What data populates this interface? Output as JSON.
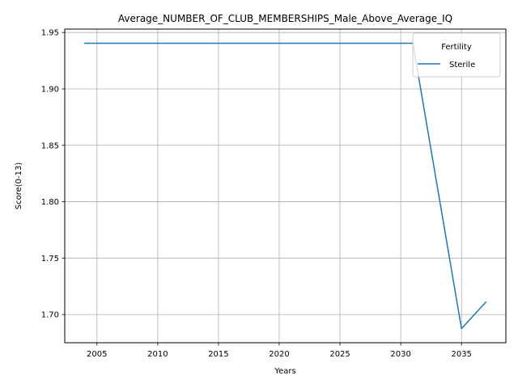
{
  "chart_data": {
    "type": "line",
    "title": "Average_NUMBER_OF_CLUB_MEMBERSHIPS_Male_Above_Average_IQ",
    "xlabel": "Years",
    "ylabel": "Score(0-13)",
    "xlim": [
      2002.35,
      2038.65
    ],
    "ylim": [
      1.675,
      1.953
    ],
    "xticks": [
      2005,
      2010,
      2015,
      2020,
      2025,
      2030,
      2035
    ],
    "yticks": [
      1.7,
      1.75,
      1.8,
      1.85,
      1.9,
      1.95
    ],
    "xtick_labels": [
      "2005",
      "2010",
      "2015",
      "2020",
      "2025",
      "2030",
      "2035"
    ],
    "ytick_labels": [
      "1.70",
      "1.75",
      "1.80",
      "1.85",
      "1.90",
      "1.95"
    ],
    "grid": true,
    "legend": {
      "title": "Fertility",
      "placement": "top-right"
    },
    "series": [
      {
        "name": "Sterile",
        "color": "#1f77b4",
        "x": [
          2004,
          2031,
          2035,
          2037
        ],
        "y": [
          1.9405,
          1.9405,
          1.6875,
          1.711
        ]
      }
    ]
  }
}
